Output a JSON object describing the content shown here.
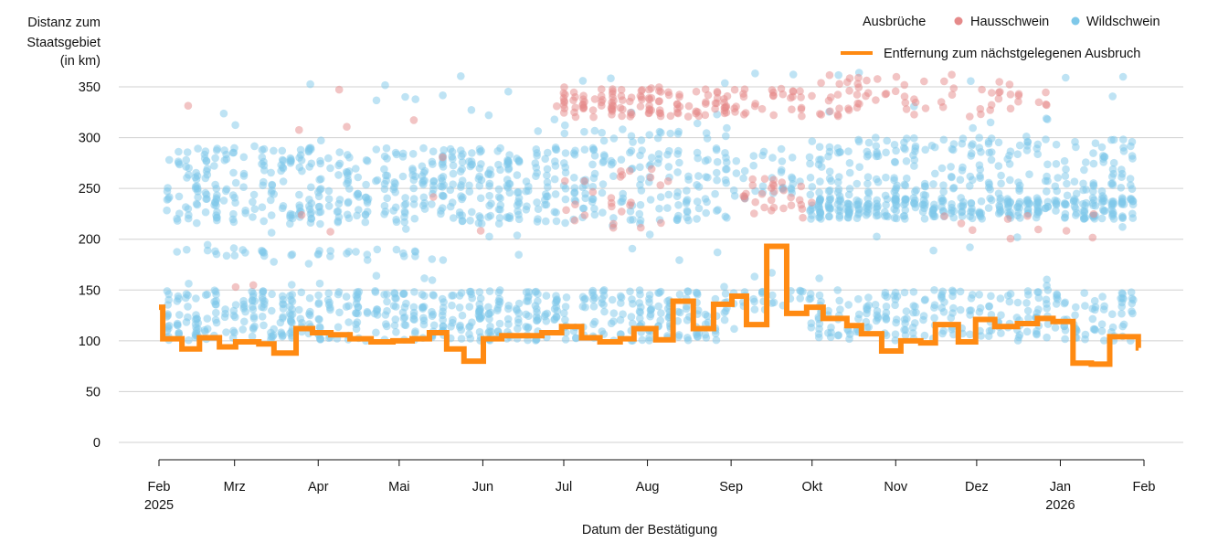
{
  "chart_data": {
    "type": "scatter",
    "ylabel_lines": [
      "Distanz zum",
      "Staatsgebiet",
      "(in km)"
    ],
    "xlabel": "Datum der Bestätigung",
    "x_unit": "days since 2025-02-01",
    "xlim": [
      0,
      365
    ],
    "ylim": [
      0,
      365
    ],
    "yticks": [
      0,
      50,
      100,
      150,
      200,
      250,
      300,
      350
    ],
    "xticks": [
      {
        "day": 0,
        "label": "Feb",
        "sub": "2025"
      },
      {
        "day": 28,
        "label": "Mrz",
        "sub": ""
      },
      {
        "day": 59,
        "label": "Apr",
        "sub": ""
      },
      {
        "day": 89,
        "label": "Mai",
        "sub": ""
      },
      {
        "day": 120,
        "label": "Jun",
        "sub": ""
      },
      {
        "day": 150,
        "label": "Jul",
        "sub": ""
      },
      {
        "day": 181,
        "label": "Aug",
        "sub": ""
      },
      {
        "day": 212,
        "label": "Sep",
        "sub": ""
      },
      {
        "day": 242,
        "label": "Okt",
        "sub": ""
      },
      {
        "day": 273,
        "label": "Nov",
        "sub": ""
      },
      {
        "day": 303,
        "label": "Dez",
        "sub": ""
      },
      {
        "day": 334,
        "label": "Jan",
        "sub": "2026"
      },
      {
        "day": 365,
        "label": "Feb",
        "sub": ""
      }
    ],
    "grid": true,
    "legend": {
      "placement": "top-right",
      "title": "Ausbrüche",
      "entries": [
        {
          "name": "Hausschwein",
          "color": "#e58a8a"
        },
        {
          "name": "Wildschwein",
          "color": "#7ec8e9"
        }
      ],
      "line_entry": {
        "name": "Entfernung zum nächstgelegenen Ausbruch",
        "color": "#ff8a12"
      }
    },
    "series_points": [
      {
        "series": "Wildschwein",
        "clusters": [
          {
            "days": [
              2,
              150
            ],
            "km": [
              100,
              150
            ],
            "n": 420
          },
          {
            "days": [
              2,
              150
            ],
            "km": [
              215,
              290
            ],
            "n": 460
          },
          {
            "days": [
              5,
              100
            ],
            "km": [
              183,
              190
            ],
            "n": 30
          },
          {
            "days": [
              150,
              212
            ],
            "km": [
              100,
              150
            ],
            "n": 150
          },
          {
            "days": [
              150,
              212
            ],
            "km": [
              215,
              290
            ],
            "n": 140
          },
          {
            "days": [
              150,
              212
            ],
            "km": [
              295,
              310
            ],
            "n": 20
          },
          {
            "days": [
              212,
              242
            ],
            "km": [
              130,
              150
            ],
            "n": 25
          },
          {
            "days": [
              212,
              242
            ],
            "km": [
              240,
              290
            ],
            "n": 35
          },
          {
            "days": [
              242,
              362
            ],
            "km": [
              100,
              150
            ],
            "n": 250
          },
          {
            "days": [
              242,
              362
            ],
            "km": [
              220,
              240
            ],
            "n": 300
          },
          {
            "days": [
              242,
              362
            ],
            "km": [
              240,
              300
            ],
            "n": 220
          },
          {
            "days": [
              2,
              362
            ],
            "km": [
              150,
              365
            ],
            "n": 110
          }
        ]
      },
      {
        "series": "Hausschwein",
        "clusters": [
          {
            "days": [
              148,
              240
            ],
            "km": [
              320,
              350
            ],
            "n": 150
          },
          {
            "days": [
              150,
              190
            ],
            "km": [
              208,
              270
            ],
            "n": 25
          },
          {
            "days": [
              215,
              240
            ],
            "km": [
              220,
              260
            ],
            "n": 30
          },
          {
            "days": [
              240,
              330
            ],
            "km": [
              320,
              362
            ],
            "n": 70
          },
          {
            "days": [
              0,
              150
            ],
            "km": [
              125,
              365
            ],
            "n": 12
          },
          {
            "days": [
              290,
              360
            ],
            "km": [
              190,
              240
            ],
            "n": 10
          }
        ]
      }
    ],
    "step_line": {
      "name": "Entfernung zum nächstgelegenen Ausbruch",
      "days": [
        0,
        1.4,
        8.5,
        15,
        22.4,
        28.4,
        37,
        42.6,
        50.8,
        56.9,
        63.7,
        70.8,
        78.6,
        86.7,
        93.8,
        100.2,
        106.6,
        113,
        120.2,
        120.2,
        127,
        134.4,
        141.9,
        149.2,
        156.6,
        163.4,
        170.9,
        176,
        184.1,
        190.5,
        198,
        205.5,
        212.3,
        217.7,
        225.2,
        232.6,
        240,
        246.1,
        254.9,
        260.3,
        267.8,
        274.9,
        282.3,
        287.7,
        296.2,
        302.6,
        309.7,
        318.1,
        325.5,
        331.3,
        338.7,
        345.5,
        352.3,
        362.9
      ],
      "km": [
        133,
        102,
        92,
        103,
        94,
        99,
        97,
        88,
        112,
        108,
        106,
        102,
        99,
        100,
        102,
        108,
        92,
        80,
        80,
        102,
        105,
        105,
        108,
        114,
        103,
        99,
        102,
        112,
        101,
        139,
        112,
        136,
        144,
        116,
        193,
        127,
        133,
        122,
        115,
        107,
        90,
        100,
        98,
        116,
        99,
        121,
        114,
        117,
        122,
        119,
        78,
        77,
        104,
        93
      ]
    }
  }
}
